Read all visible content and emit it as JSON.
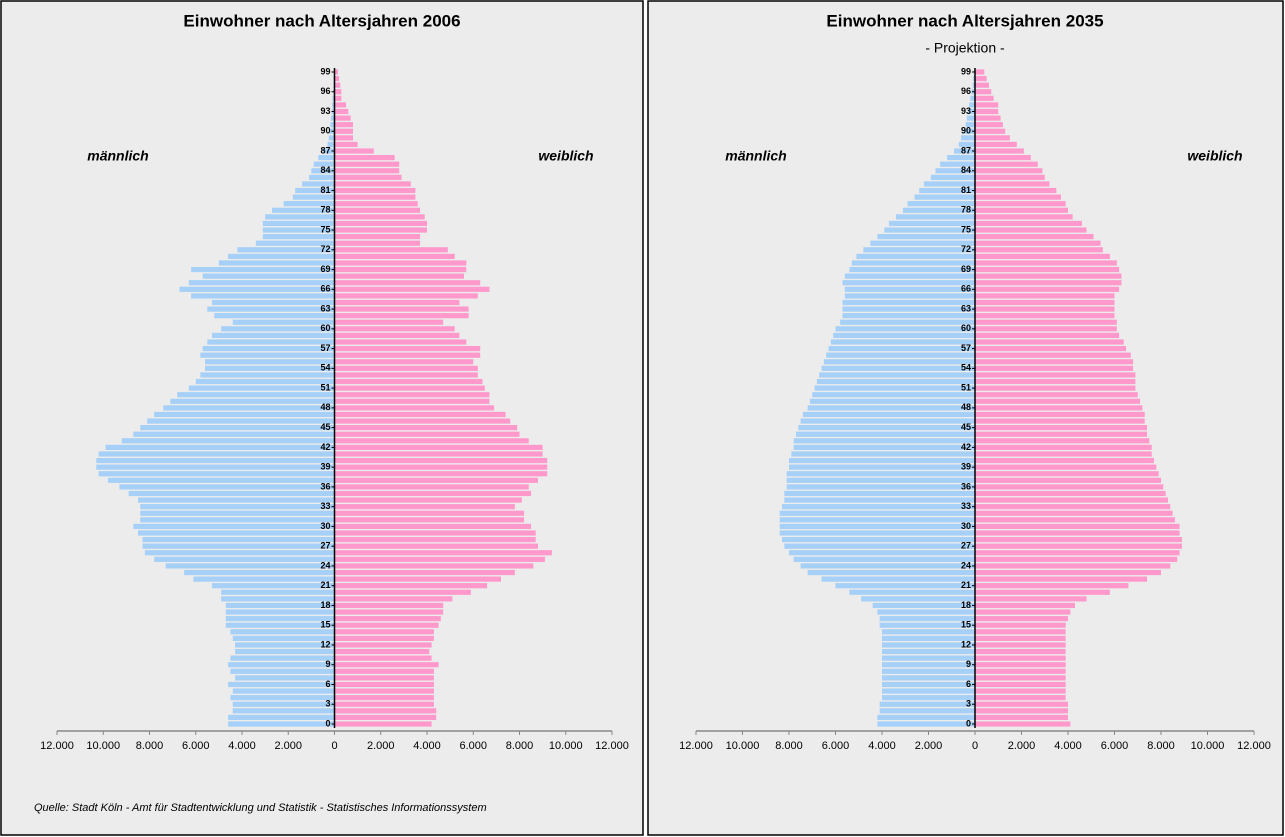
{
  "chart_data": [
    {
      "type": "pyramid",
      "title": "Einwohner nach Altersjahren 2006",
      "categories": [
        0,
        null,
        null,
        3,
        null,
        null,
        6,
        null,
        null,
        9,
        null,
        null,
        12,
        null,
        null,
        15,
        null,
        null,
        18,
        null,
        null,
        21,
        null,
        null,
        24,
        null,
        null,
        27,
        null,
        null,
        30,
        null,
        null,
        33,
        null,
        null,
        36,
        null,
        null,
        39,
        null,
        null,
        42,
        null,
        null,
        45,
        null,
        null,
        48,
        null,
        null,
        51,
        null,
        null,
        54,
        null,
        null,
        57,
        null,
        null,
        60,
        null,
        null,
        63,
        null,
        null,
        66,
        null,
        null,
        69,
        null,
        null,
        72,
        null,
        null,
        75,
        null,
        null,
        78,
        null,
        null,
        81,
        null,
        null,
        84,
        null,
        null,
        87,
        null,
        null,
        90,
        null,
        null,
        93,
        null,
        null,
        96,
        null,
        null,
        99
      ],
      "series": [
        {
          "name": "männlich",
          "color": "#a6d0f7",
          "values": [
            4600,
            4600,
            4400,
            4400,
            4500,
            4400,
            4600,
            4300,
            4500,
            4600,
            4500,
            4300,
            4300,
            4400,
            4500,
            4700,
            4700,
            4700,
            4700,
            4900,
            4900,
            5300,
            6100,
            6500,
            7300,
            7800,
            8200,
            8300,
            8300,
            8500,
            8700,
            8400,
            8400,
            8400,
            8500,
            8900,
            9300,
            9800,
            10200,
            10300,
            10300,
            10200,
            9900,
            9200,
            8700,
            8400,
            8100,
            7800,
            7400,
            7100,
            6800,
            6300,
            6000,
            5800,
            5600,
            5600,
            5800,
            5700,
            5500,
            5300,
            4900,
            4400,
            5200,
            5500,
            5300,
            6200,
            6700,
            6300,
            5700,
            6200,
            5000,
            4600,
            4200,
            3400,
            3100,
            3100,
            3100,
            3000,
            2700,
            2200,
            1800,
            1700,
            1400,
            1100,
            1000,
            900,
            700,
            500,
            300,
            250,
            200,
            180,
            150,
            120,
            100,
            80,
            60,
            50,
            40,
            30
          ]
        },
        {
          "name": "weiblich",
          "color": "#ff99cc",
          "values": [
            4200,
            4400,
            4400,
            4300,
            4300,
            4300,
            4300,
            4300,
            4300,
            4500,
            4200,
            4100,
            4200,
            4300,
            4300,
            4500,
            4600,
            4700,
            4700,
            5100,
            5900,
            6600,
            7200,
            7800,
            8600,
            9100,
            9400,
            8800,
            8700,
            8700,
            8500,
            8200,
            8200,
            7800,
            8100,
            8500,
            8400,
            8800,
            9200,
            9200,
            9200,
            9000,
            9000,
            8400,
            8000,
            7900,
            7600,
            7400,
            6900,
            6700,
            6700,
            6500,
            6400,
            6200,
            6200,
            6000,
            6300,
            6300,
            5700,
            5400,
            5200,
            4700,
            5800,
            5800,
            5400,
            6200,
            6700,
            6300,
            5600,
            5700,
            5700,
            5200,
            4900,
            3700,
            3700,
            4000,
            4000,
            3900,
            3700,
            3600,
            3500,
            3500,
            3300,
            2900,
            2800,
            2800,
            2600,
            1700,
            1000,
            800,
            800,
            800,
            700,
            600,
            500,
            300,
            300,
            250,
            200,
            150
          ]
        }
      ],
      "xlim": [
        -12000,
        12000
      ],
      "xticks": [
        {
          "value": -12000,
          "label": "12.000"
        },
        {
          "value": -10000,
          "label": "10.000"
        },
        {
          "value": -8000,
          "label": "8.000"
        },
        {
          "value": -6000,
          "label": "6.000"
        },
        {
          "value": -4000,
          "label": "4.000"
        },
        {
          "value": -2000,
          "label": "2.000"
        },
        0,
        {
          "value": 2000,
          "label": "2.000"
        },
        {
          "value": 4000,
          "label": "4.000"
        },
        {
          "value": 6000,
          "label": "6.000"
        },
        {
          "value": 8000,
          "label": "8.000"
        },
        {
          "value": 10000,
          "label": "10.000"
        },
        {
          "value": 12000,
          "label": "12.000"
        }
      ]
    },
    {
      "type": "pyramid",
      "title": "Einwohner nach Altersjahren 2035",
      "subtitle": "- Projektion -",
      "categories": [
        0,
        null,
        null,
        3,
        null,
        null,
        6,
        null,
        null,
        9,
        null,
        null,
        12,
        null,
        null,
        15,
        null,
        null,
        18,
        null,
        null,
        21,
        null,
        null,
        24,
        null,
        null,
        27,
        null,
        null,
        30,
        null,
        null,
        33,
        null,
        null,
        36,
        null,
        null,
        39,
        null,
        null,
        42,
        null,
        null,
        45,
        null,
        null,
        48,
        null,
        null,
        51,
        null,
        null,
        54,
        null,
        null,
        57,
        null,
        null,
        60,
        null,
        null,
        63,
        null,
        null,
        66,
        null,
        null,
        69,
        null,
        null,
        72,
        null,
        null,
        75,
        null,
        null,
        78,
        null,
        null,
        81,
        null,
        null,
        84,
        null,
        null,
        87,
        null,
        null,
        90,
        null,
        null,
        93,
        null,
        null,
        96,
        null,
        null,
        99
      ],
      "series": [
        {
          "name": "männlich",
          "color": "#a6d0f7",
          "values": [
            4200,
            4200,
            4100,
            4100,
            4000,
            4000,
            4000,
            4000,
            4000,
            4000,
            4000,
            4000,
            4000,
            4000,
            4000,
            4100,
            4100,
            4200,
            4400,
            4900,
            5400,
            6000,
            6600,
            7200,
            7500,
            7800,
            8000,
            8200,
            8300,
            8400,
            8400,
            8400,
            8400,
            8300,
            8200,
            8200,
            8100,
            8100,
            8100,
            8000,
            8000,
            7900,
            7800,
            7800,
            7700,
            7600,
            7500,
            7400,
            7200,
            7100,
            7000,
            6900,
            6800,
            6700,
            6600,
            6500,
            6400,
            6300,
            6200,
            6100,
            6000,
            5800,
            5700,
            5700,
            5700,
            5600,
            5600,
            5700,
            5600,
            5400,
            5300,
            5100,
            4800,
            4500,
            4200,
            3900,
            3700,
            3400,
            3100,
            2900,
            2600,
            2400,
            2200,
            1900,
            1700,
            1500,
            1200,
            900,
            700,
            600,
            500,
            400,
            350,
            300,
            250,
            200,
            150,
            100,
            80,
            50
          ]
        },
        {
          "name": "weiblich",
          "color": "#ff99cc",
          "values": [
            4100,
            4000,
            4000,
            4000,
            3900,
            3900,
            3900,
            3900,
            3900,
            3900,
            3900,
            3900,
            3900,
            3900,
            3900,
            3900,
            4000,
            4100,
            4300,
            4800,
            5800,
            6600,
            7400,
            8000,
            8400,
            8700,
            8800,
            8900,
            8900,
            8800,
            8800,
            8600,
            8500,
            8400,
            8300,
            8200,
            8100,
            8000,
            7900,
            7800,
            7700,
            7600,
            7600,
            7500,
            7400,
            7400,
            7300,
            7300,
            7200,
            7100,
            7000,
            6900,
            6900,
            6900,
            6800,
            6800,
            6700,
            6500,
            6400,
            6200,
            6100,
            6100,
            6000,
            6000,
            6000,
            6000,
            6200,
            6300,
            6300,
            6200,
            6100,
            5800,
            5500,
            5400,
            5100,
            4800,
            4600,
            4200,
            4000,
            3900,
            3700,
            3500,
            3200,
            3000,
            2900,
            2700,
            2400,
            2100,
            1800,
            1500,
            1300,
            1200,
            1100,
            1000,
            1000,
            800,
            700,
            600,
            500,
            400
          ]
        }
      ],
      "xlim": [
        -12000,
        12000
      ],
      "xticks": [
        {
          "value": -12000,
          "label": "12.000"
        },
        {
          "value": -10000,
          "label": "10.000"
        },
        {
          "value": -8000,
          "label": "8.000"
        },
        {
          "value": -6000,
          "label": "6.000"
        },
        {
          "value": -4000,
          "label": "4.000"
        },
        {
          "value": -2000,
          "label": "2.000"
        },
        0,
        {
          "value": 2000,
          "label": "2.000"
        },
        {
          "value": 4000,
          "label": "4.000"
        },
        {
          "value": 6000,
          "label": "6.000"
        },
        {
          "value": 8000,
          "label": "8.000"
        },
        {
          "value": 10000,
          "label": "10.000"
        },
        {
          "value": 12000,
          "label": "12.000"
        }
      ]
    }
  ],
  "source": "Quelle: Stadt Köln - Amt für Stadtentwicklung und Statistik - Statistisches Informationssystem"
}
